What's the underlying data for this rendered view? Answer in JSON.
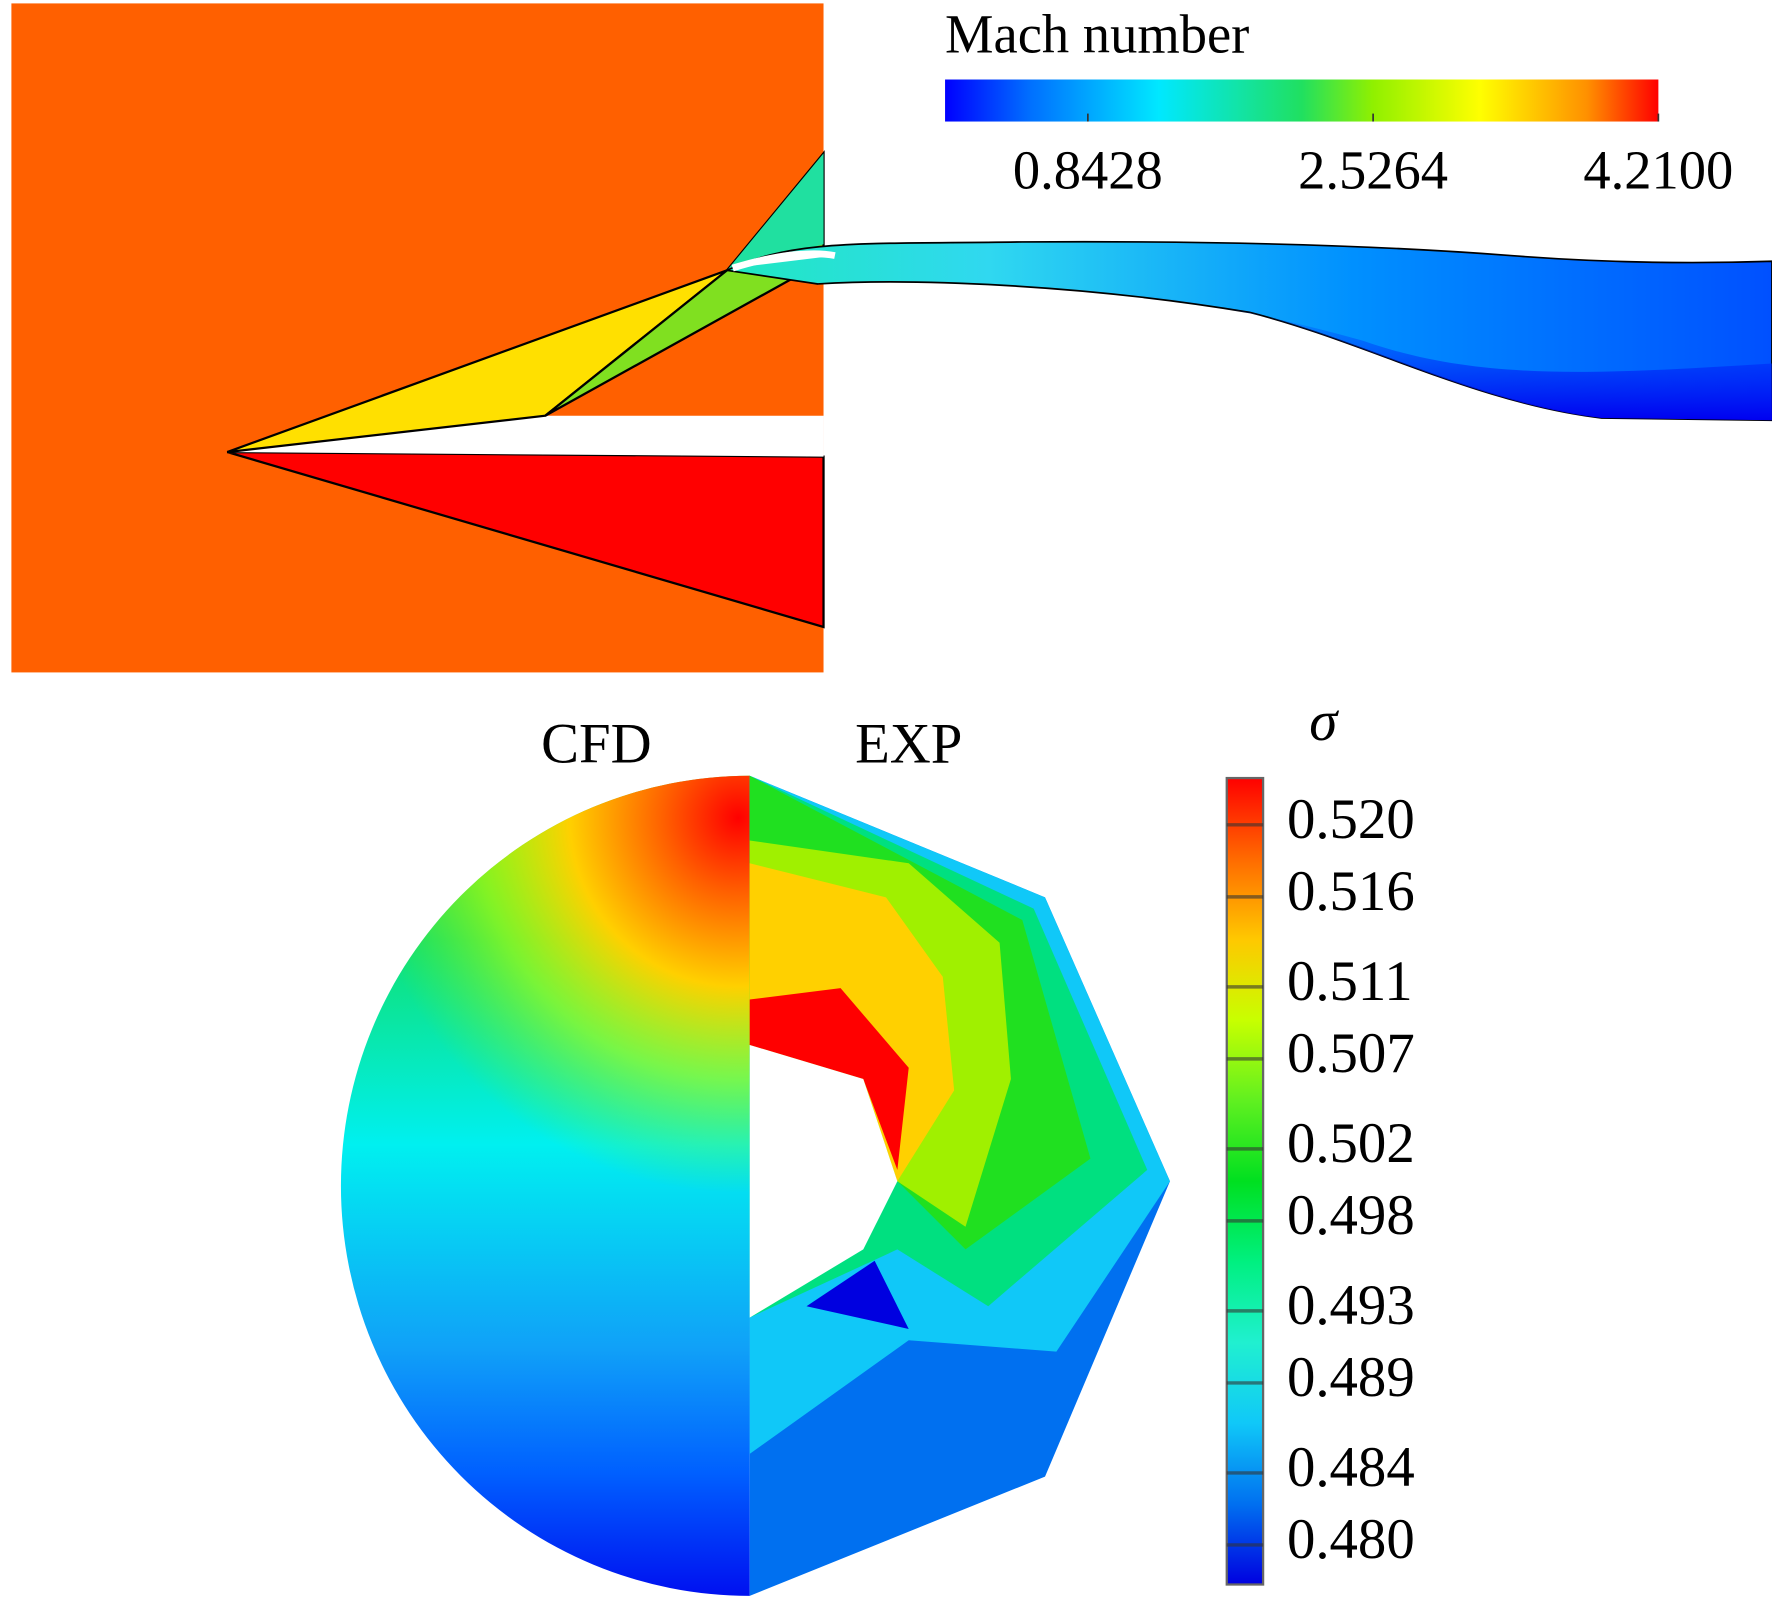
{
  "mach_panel": {
    "colorbar": {
      "label": "Mach number",
      "range": [
        0,
        4.21
      ],
      "ticks": [
        0.8428,
        2.5264,
        {
          "value": 4.21,
          "label": "4.2100"
        }
      ]
    }
  },
  "sigma_panel": {
    "labels": [
      "CFD",
      "EXP"
    ],
    "colorbar": {
      "label": "σ",
      "range": [
        0.4778,
        0.5226
      ],
      "ticks": [
        {
          "value": 0.52,
          "label": "0.520"
        },
        0.516,
        0.511,
        0.507,
        0.502,
        0.498,
        0.493,
        0.489,
        0.484,
        {
          "value": 0.48,
          "label": "0.480"
        }
      ]
    }
  }
}
